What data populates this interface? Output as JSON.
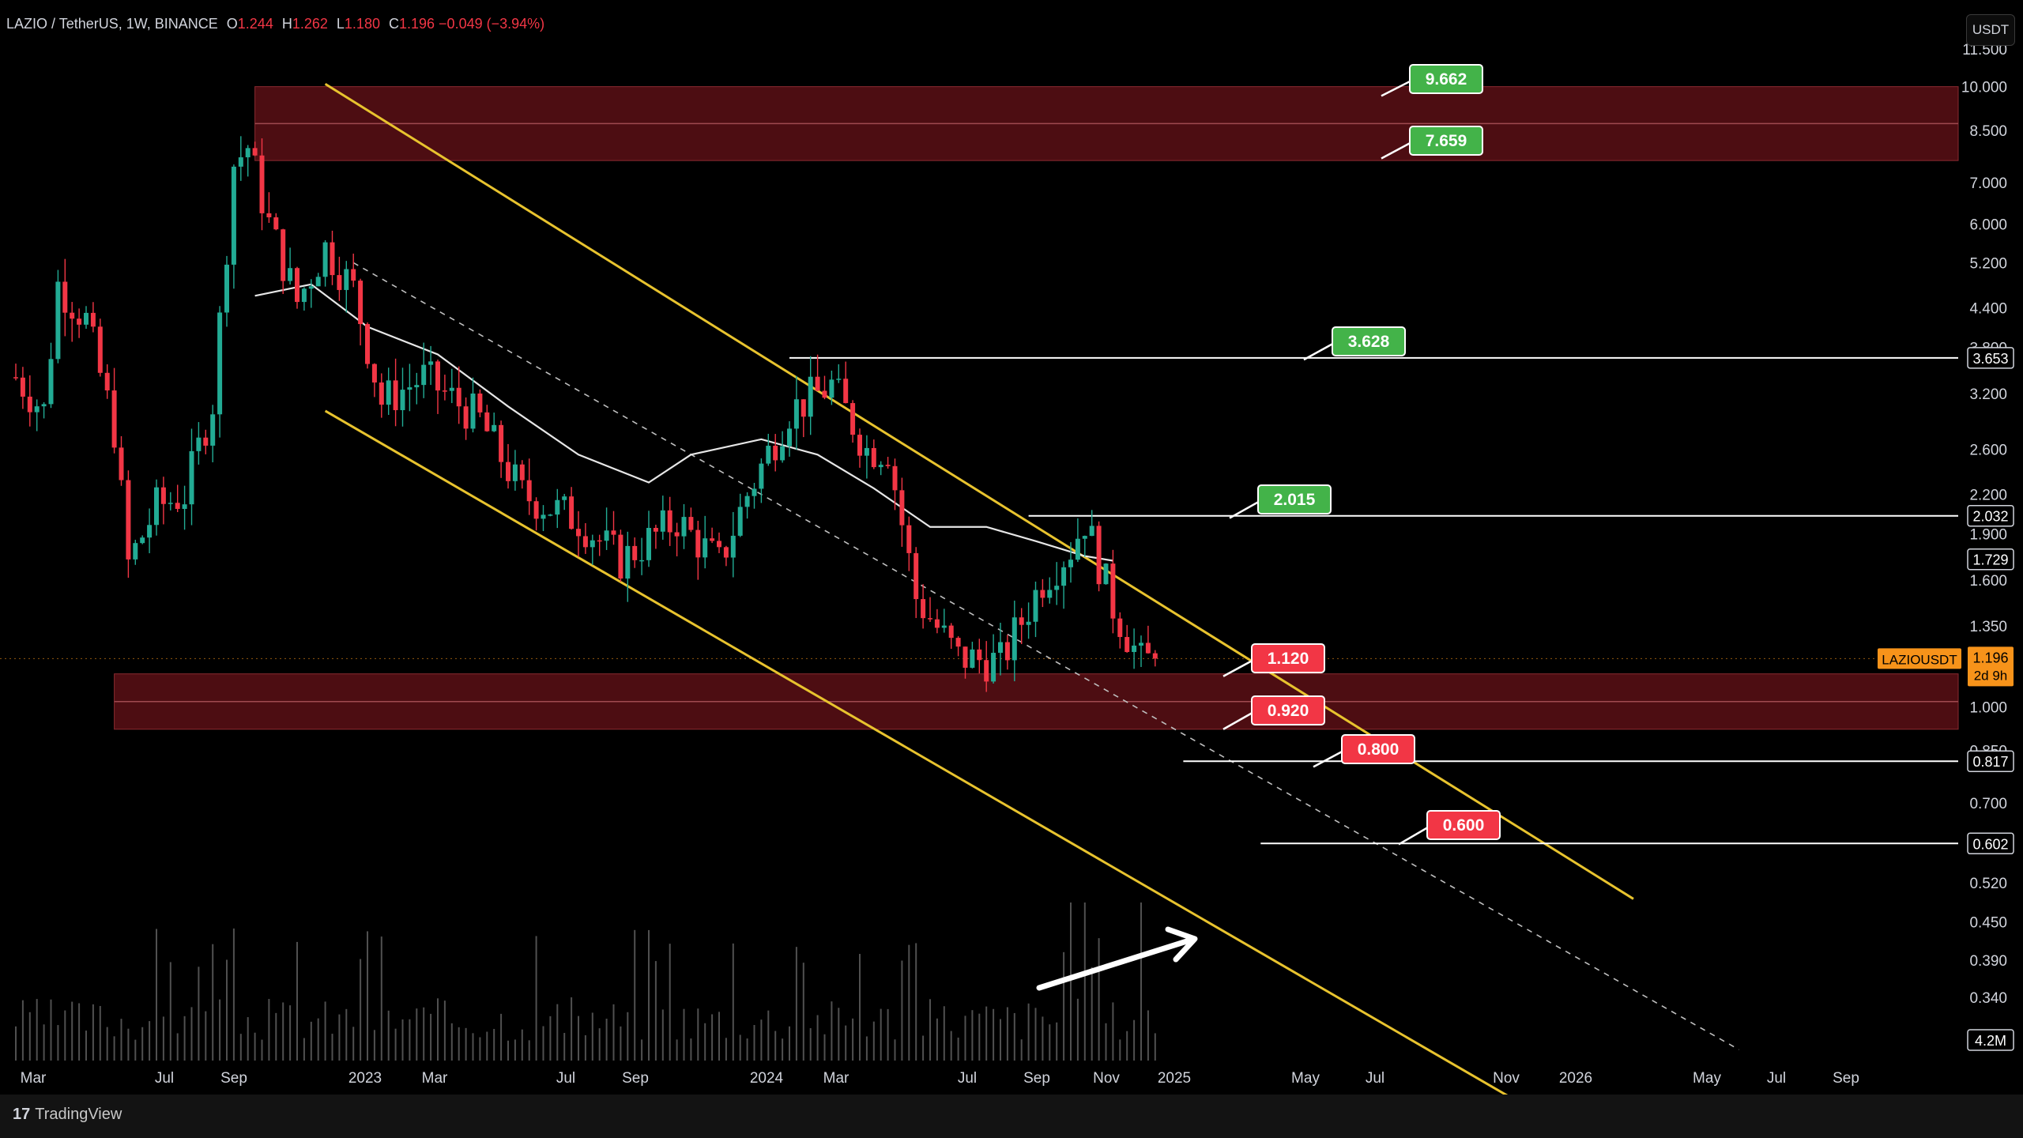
{
  "header": {
    "symbol": "LAZIO / TetherUS, 1W, BINANCE",
    "open_label": "O",
    "open": "1.244",
    "high_label": "H",
    "high": "1.262",
    "low_label": "L",
    "low": "1.180",
    "close_label": "C",
    "close": "1.196",
    "change": "−0.049 (−3.94%)"
  },
  "unit_button": "USDT",
  "footer": {
    "brand": "TradingView",
    "logo": "17"
  },
  "colors": {
    "up": "#22ab94",
    "down": "#f23645",
    "channel": "#e8c32e",
    "zone": "#5a0f15",
    "level": "#ffffff",
    "green_tag": "#43b349",
    "red_tag": "#f23645",
    "price_tag": "#f7931a"
  },
  "chart_data": {
    "type": "candlestick",
    "scale": "log",
    "y_ticks": [
      "11.500",
      "10.000",
      "8.500",
      "7.000",
      "6.000",
      "5.200",
      "4.400",
      "3.800",
      "3.200",
      "2.600",
      "2.200",
      "1.900",
      "1.600",
      "1.350",
      "1.000",
      "0.850",
      "0.700",
      "0.520",
      "0.450",
      "0.390",
      "0.340"
    ],
    "x_ticks": [
      "Mar",
      "Jul",
      "Sep",
      "2023",
      "Mar",
      "Jul",
      "Sep",
      "2024",
      "Mar",
      "Jul",
      "Sep",
      "Nov",
      "2025",
      "May",
      "Jul",
      "Nov",
      "2026",
      "May",
      "Jul",
      "Sep"
    ],
    "price_axis_labels": [
      {
        "text": "3.653",
        "value": 3.653
      },
      {
        "text": "2.032",
        "value": 2.032
      },
      {
        "text": "1.729",
        "value": 1.729
      },
      {
        "text": "0.817",
        "value": 0.817
      },
      {
        "text": "0.602",
        "value": 0.602
      }
    ],
    "current_price": {
      "symbol_tag": "LAZIOUSDT",
      "price": "1.196",
      "countdown": "2d 9h",
      "value": 1.196
    },
    "volume_label": "4.2M",
    "targets_up": [
      {
        "label": "9.662",
        "value": 9.662
      },
      {
        "label": "7.659",
        "value": 7.659
      },
      {
        "label": "3.628",
        "value": 3.628
      },
      {
        "label": "2.015",
        "value": 2.015
      }
    ],
    "targets_down": [
      {
        "label": "1.120",
        "value": 1.12
      },
      {
        "label": "0.920",
        "value": 0.92
      },
      {
        "label": "0.800",
        "value": 0.8
      },
      {
        "label": "0.600",
        "value": 0.6
      }
    ],
    "zones": [
      {
        "low": 7.6,
        "high": 10.0
      },
      {
        "low": 0.92,
        "high": 1.13
      }
    ],
    "horizontal_levels": [
      3.653,
      2.032,
      0.817,
      0.602
    ],
    "channel": {
      "upper": [
        {
          "week": 44,
          "value": 10.1
        },
        {
          "week": 230,
          "value": 0.49
        }
      ],
      "lower": [
        {
          "week": 44,
          "value": 3.0
        },
        {
          "week": 230,
          "value": 0.18
        }
      ],
      "middle": [
        {
          "week": 48,
          "value": 5.2
        },
        {
          "week": 245,
          "value": 0.28
        }
      ]
    },
    "ohlc_anchors": [
      [
        0,
        3.4
      ],
      [
        4,
        3.0
      ],
      [
        6,
        4.8
      ],
      [
        10,
        4.2
      ],
      [
        14,
        2.8
      ],
      [
        16,
        1.7
      ],
      [
        20,
        2.1
      ],
      [
        24,
        2.2
      ],
      [
        28,
        3.1
      ],
      [
        31,
        7.5
      ],
      [
        33,
        8.0
      ],
      [
        36,
        6.0
      ],
      [
        40,
        4.5
      ],
      [
        44,
        5.5
      ],
      [
        48,
        4.7
      ],
      [
        52,
        3.1
      ],
      [
        58,
        3.4
      ],
      [
        66,
        2.9
      ],
      [
        72,
        2.2
      ],
      [
        80,
        2.0
      ],
      [
        86,
        1.72
      ],
      [
        94,
        2.0
      ],
      [
        100,
        1.7
      ],
      [
        104,
        2.2
      ],
      [
        110,
        3.0
      ],
      [
        116,
        3.3
      ],
      [
        121,
        2.6
      ],
      [
        124,
        2.6
      ],
      [
        128,
        1.5
      ],
      [
        134,
        1.2
      ],
      [
        140,
        1.18
      ],
      [
        146,
        1.6
      ],
      [
        150,
        1.8
      ],
      [
        152,
        2.0
      ],
      [
        156,
        1.45
      ],
      [
        160,
        1.18
      ],
      [
        162,
        1.196
      ]
    ],
    "ma_anchors": [
      [
        34,
        4.6
      ],
      [
        42,
        4.8
      ],
      [
        50,
        4.1
      ],
      [
        60,
        3.7
      ],
      [
        70,
        3.05
      ],
      [
        80,
        2.55
      ],
      [
        90,
        2.3
      ],
      [
        96,
        2.55
      ],
      [
        106,
        2.7
      ],
      [
        114,
        2.55
      ],
      [
        122,
        2.25
      ],
      [
        130,
        1.95
      ],
      [
        138,
        1.95
      ],
      [
        145,
        1.85
      ],
      [
        152,
        1.75
      ],
      [
        156,
        1.72
      ]
    ]
  }
}
